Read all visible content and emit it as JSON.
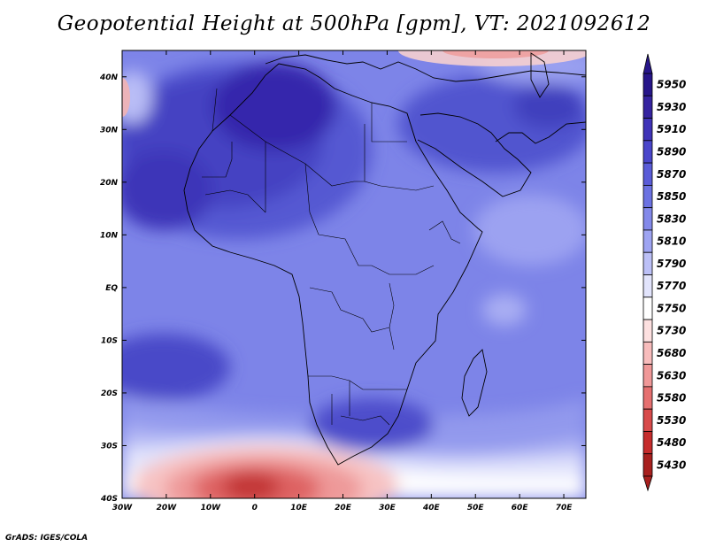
{
  "title": "Geopotential Height at 500hPa [gpm], VT: 2021092612",
  "credit": "GrADS: IGES/COLA",
  "map": {
    "lon_range": [
      -30,
      75
    ],
    "lat_range": [
      -40,
      45
    ],
    "x_ticks": [
      {
        "value": -30,
        "label": "30W"
      },
      {
        "value": -20,
        "label": "20W"
      },
      {
        "value": -10,
        "label": "10W"
      },
      {
        "value": 0,
        "label": "0"
      },
      {
        "value": 10,
        "label": "10E"
      },
      {
        "value": 20,
        "label": "20E"
      },
      {
        "value": 30,
        "label": "30E"
      },
      {
        "value": 40,
        "label": "40E"
      },
      {
        "value": 50,
        "label": "50E"
      },
      {
        "value": 60,
        "label": "60E"
      },
      {
        "value": 70,
        "label": "70E"
      }
    ],
    "y_ticks": [
      {
        "value": 40,
        "label": "40N"
      },
      {
        "value": 30,
        "label": "30N"
      },
      {
        "value": 20,
        "label": "20N"
      },
      {
        "value": 10,
        "label": "10N"
      },
      {
        "value": 0,
        "label": "EQ"
      },
      {
        "value": -10,
        "label": "10S"
      },
      {
        "value": -20,
        "label": "20S"
      },
      {
        "value": -30,
        "label": "30S"
      },
      {
        "value": -40,
        "label": "40S"
      }
    ]
  },
  "colorbar": {
    "levels": [
      "5950",
      "5930",
      "5910",
      "5890",
      "5870",
      "5850",
      "5830",
      "5810",
      "5790",
      "5770",
      "5750",
      "5730",
      "5680",
      "5630",
      "5580",
      "5530",
      "5480",
      "5430"
    ],
    "colors": [
      "#27168a",
      "#3523a0",
      "#3f33b8",
      "#4a46cb",
      "#5a5cd8",
      "#6c72e2",
      "#8389ea",
      "#9ea4f2",
      "#bcc0f7",
      "#e2e4fc",
      "#ffffff",
      "#fde0e0",
      "#f8bcbc",
      "#f09898",
      "#e67070",
      "#d84a4a",
      "#c62c2c",
      "#a8201e"
    ]
  }
}
